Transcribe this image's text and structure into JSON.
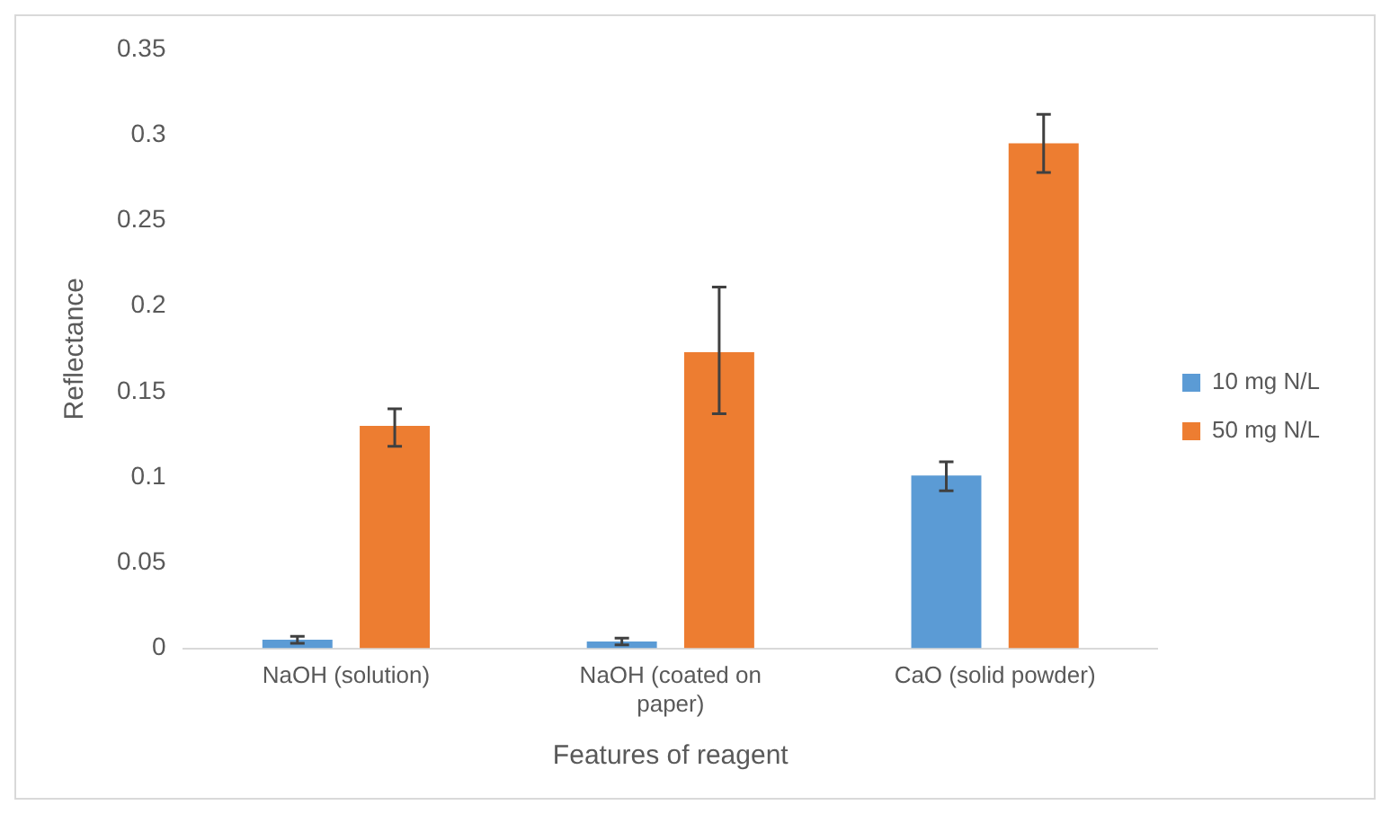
{
  "chart_data": {
    "type": "bar",
    "xlabel": "Features of reagent",
    "ylabel": "Reflectance",
    "categories": [
      "NaOH (solution)",
      "NaOH (coated on paper)",
      "CaO (solid powder)"
    ],
    "series": [
      {
        "name": "10 mg N/L",
        "color": "#5b9bd5",
        "values": [
          0.005,
          0.004,
          0.101
        ],
        "errors": [
          0.002,
          0.002,
          [
            0.092,
            0.109
          ]
        ]
      },
      {
        "name": "50 mg N/L",
        "color": "#ed7d31",
        "values": [
          0.13,
          0.173,
          0.295
        ],
        "errors": [
          [
            0.118,
            0.14
          ],
          [
            0.137,
            0.211
          ],
          [
            0.278,
            0.312
          ]
        ]
      }
    ],
    "ylim": [
      0,
      0.35
    ],
    "yticks": [
      0,
      0.05,
      0.1,
      0.15,
      0.2,
      0.25,
      0.3,
      0.35
    ],
    "grid": false,
    "legend": "right"
  }
}
